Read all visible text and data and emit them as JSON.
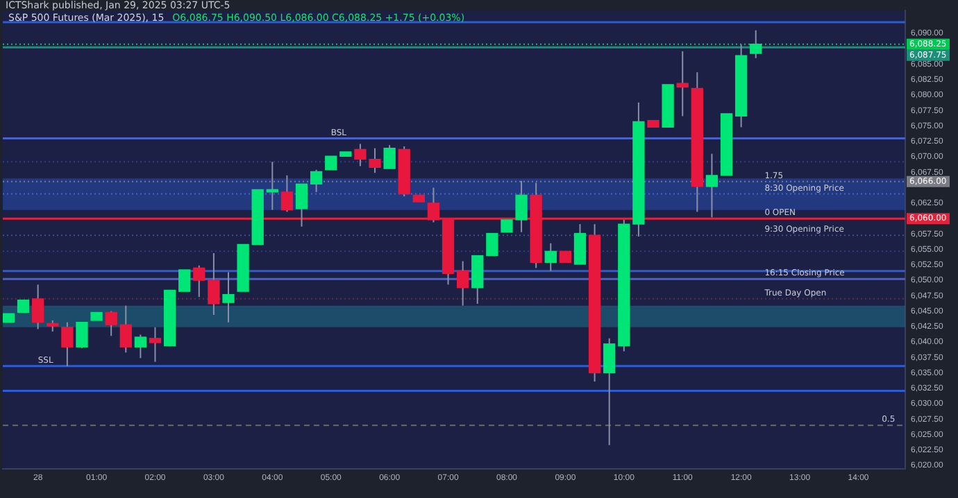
{
  "chart_data": {
    "type": "candlestick",
    "title": "S&P 500 Futures (Mar 2025), 15",
    "subtitle": "ICTShark published, Jan 29, 2025 03:27 UTC-5",
    "annotations": [
      "O6,086.75 H6,090.50 L6,086.00 C6,088.25 +1.75 (+0.03%)",
      {
        "text": "BSL",
        "x": "2025-01-28T05:00",
        "y": 6073.0
      },
      {
        "text": "1.75",
        "x": "2025-01-28T12:24",
        "y": 6066
      },
      {
        "text": "8:30 Opening Price",
        "x": "2025-01-28T12:24",
        "y": 6064.0
      },
      {
        "text": "0 OPEN",
        "x": "2025-01-28T12:24",
        "y": 6060
      },
      {
        "text": "9:30 Opening Price",
        "x": "2025-01-28T12:24",
        "y": 6057.3
      },
      {
        "text": "16:15 Closing Price",
        "x": "2025-01-28T12:24",
        "y": 6050.2
      },
      {
        "text": "True Day Open",
        "x": "2025-01-28T12:24",
        "y": 6047.0
      },
      {
        "text": "SSL",
        "x": "2025-01-28T00:00",
        "y": 6036.1
      },
      {
        "text": "0.5",
        "x": "2025-01-28T14:24",
        "y": 6026.5
      }
    ],
    "x": [
      "2025-01-27T23:30",
      "2025-01-27T23:45",
      "2025-01-28T00:00",
      "2025-01-28T00:15",
      "2025-01-28T00:30",
      "2025-01-28T00:45",
      "2025-01-28T01:00",
      "2025-01-28T01:15",
      "2025-01-28T01:30",
      "2025-01-28T01:45",
      "2025-01-28T02:00",
      "2025-01-28T02:15",
      "2025-01-28T02:30",
      "2025-01-28T02:45",
      "2025-01-28T03:00",
      "2025-01-28T03:15",
      "2025-01-28T03:30",
      "2025-01-28T03:45",
      "2025-01-28T04:00",
      "2025-01-28T04:15",
      "2025-01-28T04:30",
      "2025-01-28T04:45",
      "2025-01-28T05:00",
      "2025-01-28T05:15",
      "2025-01-28T05:30",
      "2025-01-28T05:45",
      "2025-01-28T06:00",
      "2025-01-28T06:15",
      "2025-01-28T06:30",
      "2025-01-28T06:45",
      "2025-01-28T07:00",
      "2025-01-28T07:15",
      "2025-01-28T07:30",
      "2025-01-28T07:45",
      "2025-01-28T08:00",
      "2025-01-28T08:15",
      "2025-01-28T08:30",
      "2025-01-28T08:45",
      "2025-01-28T09:00",
      "2025-01-28T09:15",
      "2025-01-28T09:30",
      "2025-01-28T09:45",
      "2025-01-28T10:00",
      "2025-01-28T10:15",
      "2025-01-28T10:30",
      "2025-01-28T10:45",
      "2025-01-28T11:00",
      "2025-01-28T11:15",
      "2025-01-28T11:30",
      "2025-01-28T11:45",
      "2025-01-28T12:00",
      "2025-01-28T12:15"
    ],
    "ohlc": [
      [
        6043.2,
        6044.6,
        6043.2,
        6044.6
      ],
      [
        6044.8,
        6046.8,
        6044.8,
        6046.8
      ],
      [
        6047.0,
        6049.3,
        6042.1,
        6043.2
      ],
      [
        6043.0,
        6043.5,
        6041.7,
        6042.6
      ],
      [
        6042.4,
        6043.2,
        6036.1,
        6039.2
      ],
      [
        6039.2,
        6043.2,
        6039.0,
        6043.2
      ],
      [
        6043.5,
        6044.8,
        6043.5,
        6044.8
      ],
      [
        6044.8,
        6045.0,
        6041.0,
        6042.8
      ],
      [
        6042.8,
        6045.9,
        6038.3,
        6039.2
      ],
      [
        6039.2,
        6041.2,
        6037.4,
        6040.8
      ],
      [
        6040.6,
        6042.4,
        6036.8,
        6039.9
      ],
      [
        6039.4,
        6048.4,
        6039.4,
        6048.4
      ],
      [
        6048.2,
        6051.7,
        6048.2,
        6051.7
      ],
      [
        6052.0,
        6052.4,
        6047.3,
        6050.0
      ],
      [
        6050.0,
        6054.4,
        6044.4,
        6046.2
      ],
      [
        6046.4,
        6051.3,
        6043.2,
        6047.7
      ],
      [
        6048.2,
        6055.8,
        6048.2,
        6055.8
      ],
      [
        6055.8,
        6064.7,
        6055.8,
        6064.7
      ],
      [
        6064.3,
        6069.2,
        6061.4,
        6064.7
      ],
      [
        6064.3,
        6067.0,
        6061.1,
        6061.4
      ],
      [
        6061.6,
        6065.6,
        6058.7,
        6065.6
      ],
      [
        6065.6,
        6067.9,
        6064.3,
        6067.6
      ],
      [
        6067.9,
        6070.1,
        6067.9,
        6070.1
      ],
      [
        6070.1,
        6070.8,
        6070.1,
        6070.8
      ],
      [
        6071.2,
        6072.1,
        6068.5,
        6069.6
      ],
      [
        6069.6,
        6071.4,
        6067.4,
        6068.3
      ],
      [
        6068.1,
        6071.9,
        6068.1,
        6071.4
      ],
      [
        6071.2,
        6071.7,
        6063.6,
        6064.0
      ],
      [
        6063.8,
        6063.8,
        6062.7,
        6062.7
      ],
      [
        6062.5,
        6065.0,
        6059.4,
        6059.8
      ],
      [
        6060.0,
        6060.0,
        6049.3,
        6051.1
      ],
      [
        6051.5,
        6053.1,
        6045.9,
        6048.8
      ],
      [
        6048.8,
        6054.0,
        6046.2,
        6054.0
      ],
      [
        6054.0,
        6057.6,
        6054.0,
        6057.6
      ],
      [
        6057.8,
        6059.8,
        6057.8,
        6059.8
      ],
      [
        6059.8,
        6066.1,
        6057.8,
        6063.8
      ],
      [
        6063.8,
        6065.8,
        6052.0,
        6052.9
      ],
      [
        6052.9,
        6056.0,
        6051.5,
        6054.7
      ],
      [
        6054.7,
        6054.7,
        6052.9,
        6052.9
      ],
      [
        6052.6,
        6059.1,
        6052.6,
        6057.6
      ],
      [
        6057.3,
        6059.1,
        6033.6,
        6035.0
      ],
      [
        6035.0,
        6040.6,
        6023.3,
        6039.7
      ],
      [
        6039.4,
        6059.8,
        6038.5,
        6059.1
      ],
      [
        6059.1,
        6078.8,
        6057.1,
        6075.7
      ],
      [
        6075.9,
        6075.9,
        6074.8,
        6074.8
      ],
      [
        6074.8,
        6081.7,
        6074.8,
        6081.7
      ],
      [
        6081.9,
        6087.1,
        6076.6,
        6081.3
      ],
      [
        6081.1,
        6083.7,
        6061.1,
        6065.2
      ],
      [
        6065.2,
        6070.5,
        6060.2,
        6067.0
      ],
      [
        6067.0,
        6077.0,
        6067.0,
        6077.0
      ],
      [
        6076.6,
        6088.2,
        6074.8,
        6086.4
      ],
      [
        6086.75,
        6090.5,
        6086.0,
        6088.25
      ]
    ],
    "xlim": [
      "2025-01-27T23:24",
      "2025-01-28T14:48"
    ],
    "xticks": [
      {
        "value": "2025-01-28T00:00",
        "label": "28"
      },
      {
        "value": "2025-01-28T01:00",
        "label": "01:00"
      },
      {
        "value": "2025-01-28T02:00",
        "label": "02:00"
      },
      {
        "value": "2025-01-28T03:00",
        "label": "03:00"
      },
      {
        "value": "2025-01-28T04:00",
        "label": "04:00"
      },
      {
        "value": "2025-01-28T05:00",
        "label": "05:00"
      },
      {
        "value": "2025-01-28T06:00",
        "label": "06:00"
      },
      {
        "value": "2025-01-28T07:00",
        "label": "07:00"
      },
      {
        "value": "2025-01-28T08:00",
        "label": "08:00"
      },
      {
        "value": "2025-01-28T09:00",
        "label": "09:00"
      },
      {
        "value": "2025-01-28T10:00",
        "label": "10:00"
      },
      {
        "value": "2025-01-28T11:00",
        "label": "11:00"
      },
      {
        "value": "2025-01-28T12:00",
        "label": "12:00"
      },
      {
        "value": "2025-01-28T13:00",
        "label": "13:00"
      },
      {
        "value": "2025-01-28T14:00",
        "label": "14:00"
      }
    ],
    "ylim": [
      6019.5,
      6093.7
    ],
    "yticks": [
      {
        "value": 6020,
        "label": "6,020.00"
      },
      {
        "value": 6022.5,
        "label": "6,022.50"
      },
      {
        "value": 6025,
        "label": "6,025.00"
      },
      {
        "value": 6027.5,
        "label": "6,027.50"
      },
      {
        "value": 6030,
        "label": "6,030.00"
      },
      {
        "value": 6032.5,
        "label": "6,032.50"
      },
      {
        "value": 6035,
        "label": "6,035.00"
      },
      {
        "value": 6037.5,
        "label": "6,037.50"
      },
      {
        "value": 6040,
        "label": "6,040.00"
      },
      {
        "value": 6042.5,
        "label": "6,042.50"
      },
      {
        "value": 6045,
        "label": "6,045.00"
      },
      {
        "value": 6047.5,
        "label": "6,047.50"
      },
      {
        "value": 6050,
        "label": "6,050.00"
      },
      {
        "value": 6052.5,
        "label": "6,052.50"
      },
      {
        "value": 6055,
        "label": "6,055.00"
      },
      {
        "value": 6057.5,
        "label": "6,057.50"
      },
      {
        "value": 6062.5,
        "label": "6,062.50"
      },
      {
        "value": 6067.5,
        "label": "6,067.50"
      },
      {
        "value": 6070,
        "label": "6,070.00"
      },
      {
        "value": 6072.5,
        "label": "6,072.50"
      },
      {
        "value": 6075,
        "label": "6,075.00"
      },
      {
        "value": 6077.5,
        "label": "6,077.50"
      },
      {
        "value": 6080,
        "label": "6,080.00"
      },
      {
        "value": 6082.5,
        "label": "6,082.50"
      },
      {
        "value": 6085,
        "label": "6,085.00"
      },
      {
        "value": 6090,
        "label": "6,090.00"
      }
    ],
    "ref_lines": [
      {
        "axis": "y",
        "value": 6091.8,
        "color": "#2f5bd3",
        "line_style": "solid"
      },
      {
        "axis": "y",
        "value": 6088.25,
        "color": "#00c853",
        "line_style": "dotted",
        "label": "6,088.25"
      },
      {
        "axis": "y",
        "value": 6087.75,
        "color": "#1c8f7a",
        "line_style": "solid",
        "label": "6,087.75"
      },
      {
        "axis": "y",
        "value": 6073.0,
        "color": "#4a62c8",
        "line_style": "solid"
      },
      {
        "axis": "y",
        "value": 6069.2,
        "color": "#2d3f8a",
        "line_style": "dotted"
      },
      {
        "axis": "y",
        "value": 6066,
        "color": "#7c7c86",
        "line_style": "dotted",
        "label": "6,066.00"
      },
      {
        "axis": "y",
        "value": 6064.0,
        "color": "#4a62c8",
        "line_style": "dotted"
      },
      {
        "axis": "y",
        "value": 6060,
        "color": "#e0243d",
        "line_style": "solid",
        "label": "6,060.00"
      },
      {
        "axis": "y",
        "value": 6057.3,
        "color": "#3d4f9a",
        "line_style": "dotted"
      },
      {
        "axis": "y",
        "value": 6054.7,
        "color": "#2d3f8a",
        "line_style": "dotted"
      },
      {
        "axis": "y",
        "value": 6051.5,
        "color": "#2f5bd3",
        "line_style": "solid"
      },
      {
        "axis": "y",
        "value": 6050.2,
        "color": "#4a62c8",
        "line_style": "solid"
      },
      {
        "axis": "y",
        "value": 6047.0,
        "color": "#6a2a4a",
        "line_style": "dotted"
      },
      {
        "axis": "y",
        "value": 6036.1,
        "color": "#2f5bd3",
        "line_style": "solid"
      },
      {
        "axis": "y",
        "value": 6032.1,
        "color": "#2f5bd3",
        "line_style": "solid"
      },
      {
        "axis": "y",
        "value": 6026.5,
        "color": "#6e6a6a",
        "line_style": "dashed"
      }
    ],
    "bands": [
      {
        "axis": "y",
        "from": 6061.4,
        "to": 6066.5,
        "color": "#2a4fb0"
      },
      {
        "axis": "y",
        "from": 6042.4,
        "to": 6045.9,
        "color": "#1f6f8b"
      }
    ],
    "grid": false,
    "legend": false
  }
}
